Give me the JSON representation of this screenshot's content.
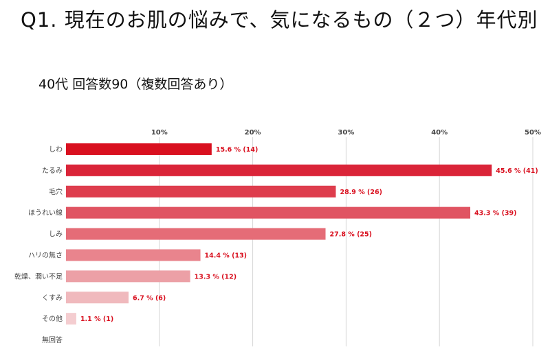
{
  "header": {
    "title": "Q1. 現在のお肌の悩みで、気になるもの（２つ）年代別",
    "subtitle": "40代  回答数90（複数回答あり）"
  },
  "chart_data": {
    "type": "bar",
    "orientation": "horizontal",
    "categories": [
      "しわ",
      "たるみ",
      "毛穴",
      "ほうれい線",
      "しみ",
      "ハリの無さ",
      "乾燥、潤い不足",
      "くすみ",
      "その他",
      "無回答"
    ],
    "values": [
      15.6,
      45.6,
      28.9,
      43.3,
      27.8,
      14.4,
      13.3,
      6.7,
      1.1,
      0
    ],
    "counts": [
      14,
      41,
      26,
      39,
      25,
      13,
      12,
      6,
      1,
      0
    ],
    "value_labels": [
      "15.6 % (14)",
      "45.6 % (41)",
      "28.9 % (26)",
      "43.3 % (39)",
      "27.8 % (25)",
      "14.4 % (13)",
      "13.3 % (12)",
      "6.7 % (6)",
      "1.1 % (1)",
      ""
    ],
    "bar_colors": [
      "#d9101f",
      "#da2438",
      "#de3d4d",
      "#e05462",
      "#e56c77",
      "#e9848d",
      "#eca0a6",
      "#f0b9bd",
      "#f4cdd0",
      "#f8e0e2"
    ],
    "value_label_color": "#d9101f",
    "xticks": [
      10,
      20,
      30,
      40,
      50
    ],
    "xtick_labels": [
      "10%",
      "20%",
      "30%",
      "40%",
      "50%"
    ],
    "xlim": [
      0,
      50
    ],
    "grid": true,
    "xaxis_position": "top"
  }
}
